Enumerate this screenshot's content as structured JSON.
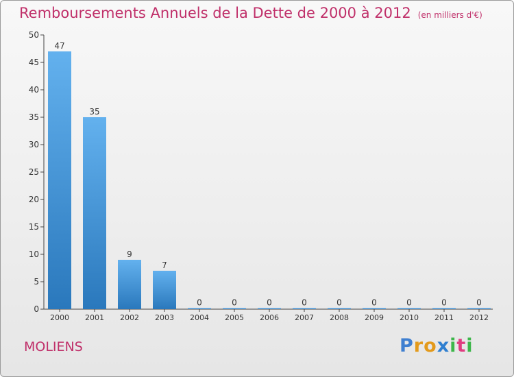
{
  "header": {
    "title": "Remboursements Annuels de la Dette de 2000 à 2012",
    "unit": "(en milliers d'€)"
  },
  "location": "MOLIENS",
  "brand": {
    "name": "Proxiti",
    "letters": [
      "P",
      "r",
      "o",
      "x",
      "i",
      "t",
      "i"
    ],
    "colors": [
      "#3f7fd0",
      "#e39a1c",
      "#e39a1c",
      "#2f7fd0",
      "#3db64a",
      "#e03c80",
      "#3db64a"
    ]
  },
  "colors": {
    "title": "#c0306a",
    "bar_top": "#63b1ee",
    "bar_bottom": "#2a78bc"
  },
  "chart_data": {
    "type": "bar",
    "title": "Remboursements Annuels de la Dette de 2000 à 2012",
    "xlabel": "",
    "ylabel": "",
    "categories": [
      "2000",
      "2001",
      "2002",
      "2003",
      "2004",
      "2005",
      "2006",
      "2007",
      "2008",
      "2009",
      "2010",
      "2011",
      "2012"
    ],
    "values": [
      47,
      35,
      9,
      7,
      0,
      0,
      0,
      0,
      0,
      0,
      0,
      0,
      0
    ],
    "value_labels": [
      "47",
      "35",
      "9",
      "7",
      "0",
      "0",
      "0",
      "0",
      "0",
      "0",
      "0",
      "0",
      "0"
    ],
    "ylim": [
      0,
      50
    ],
    "yticks": [
      0,
      5,
      10,
      15,
      20,
      25,
      30,
      35,
      40,
      45,
      50
    ],
    "grid": false
  }
}
